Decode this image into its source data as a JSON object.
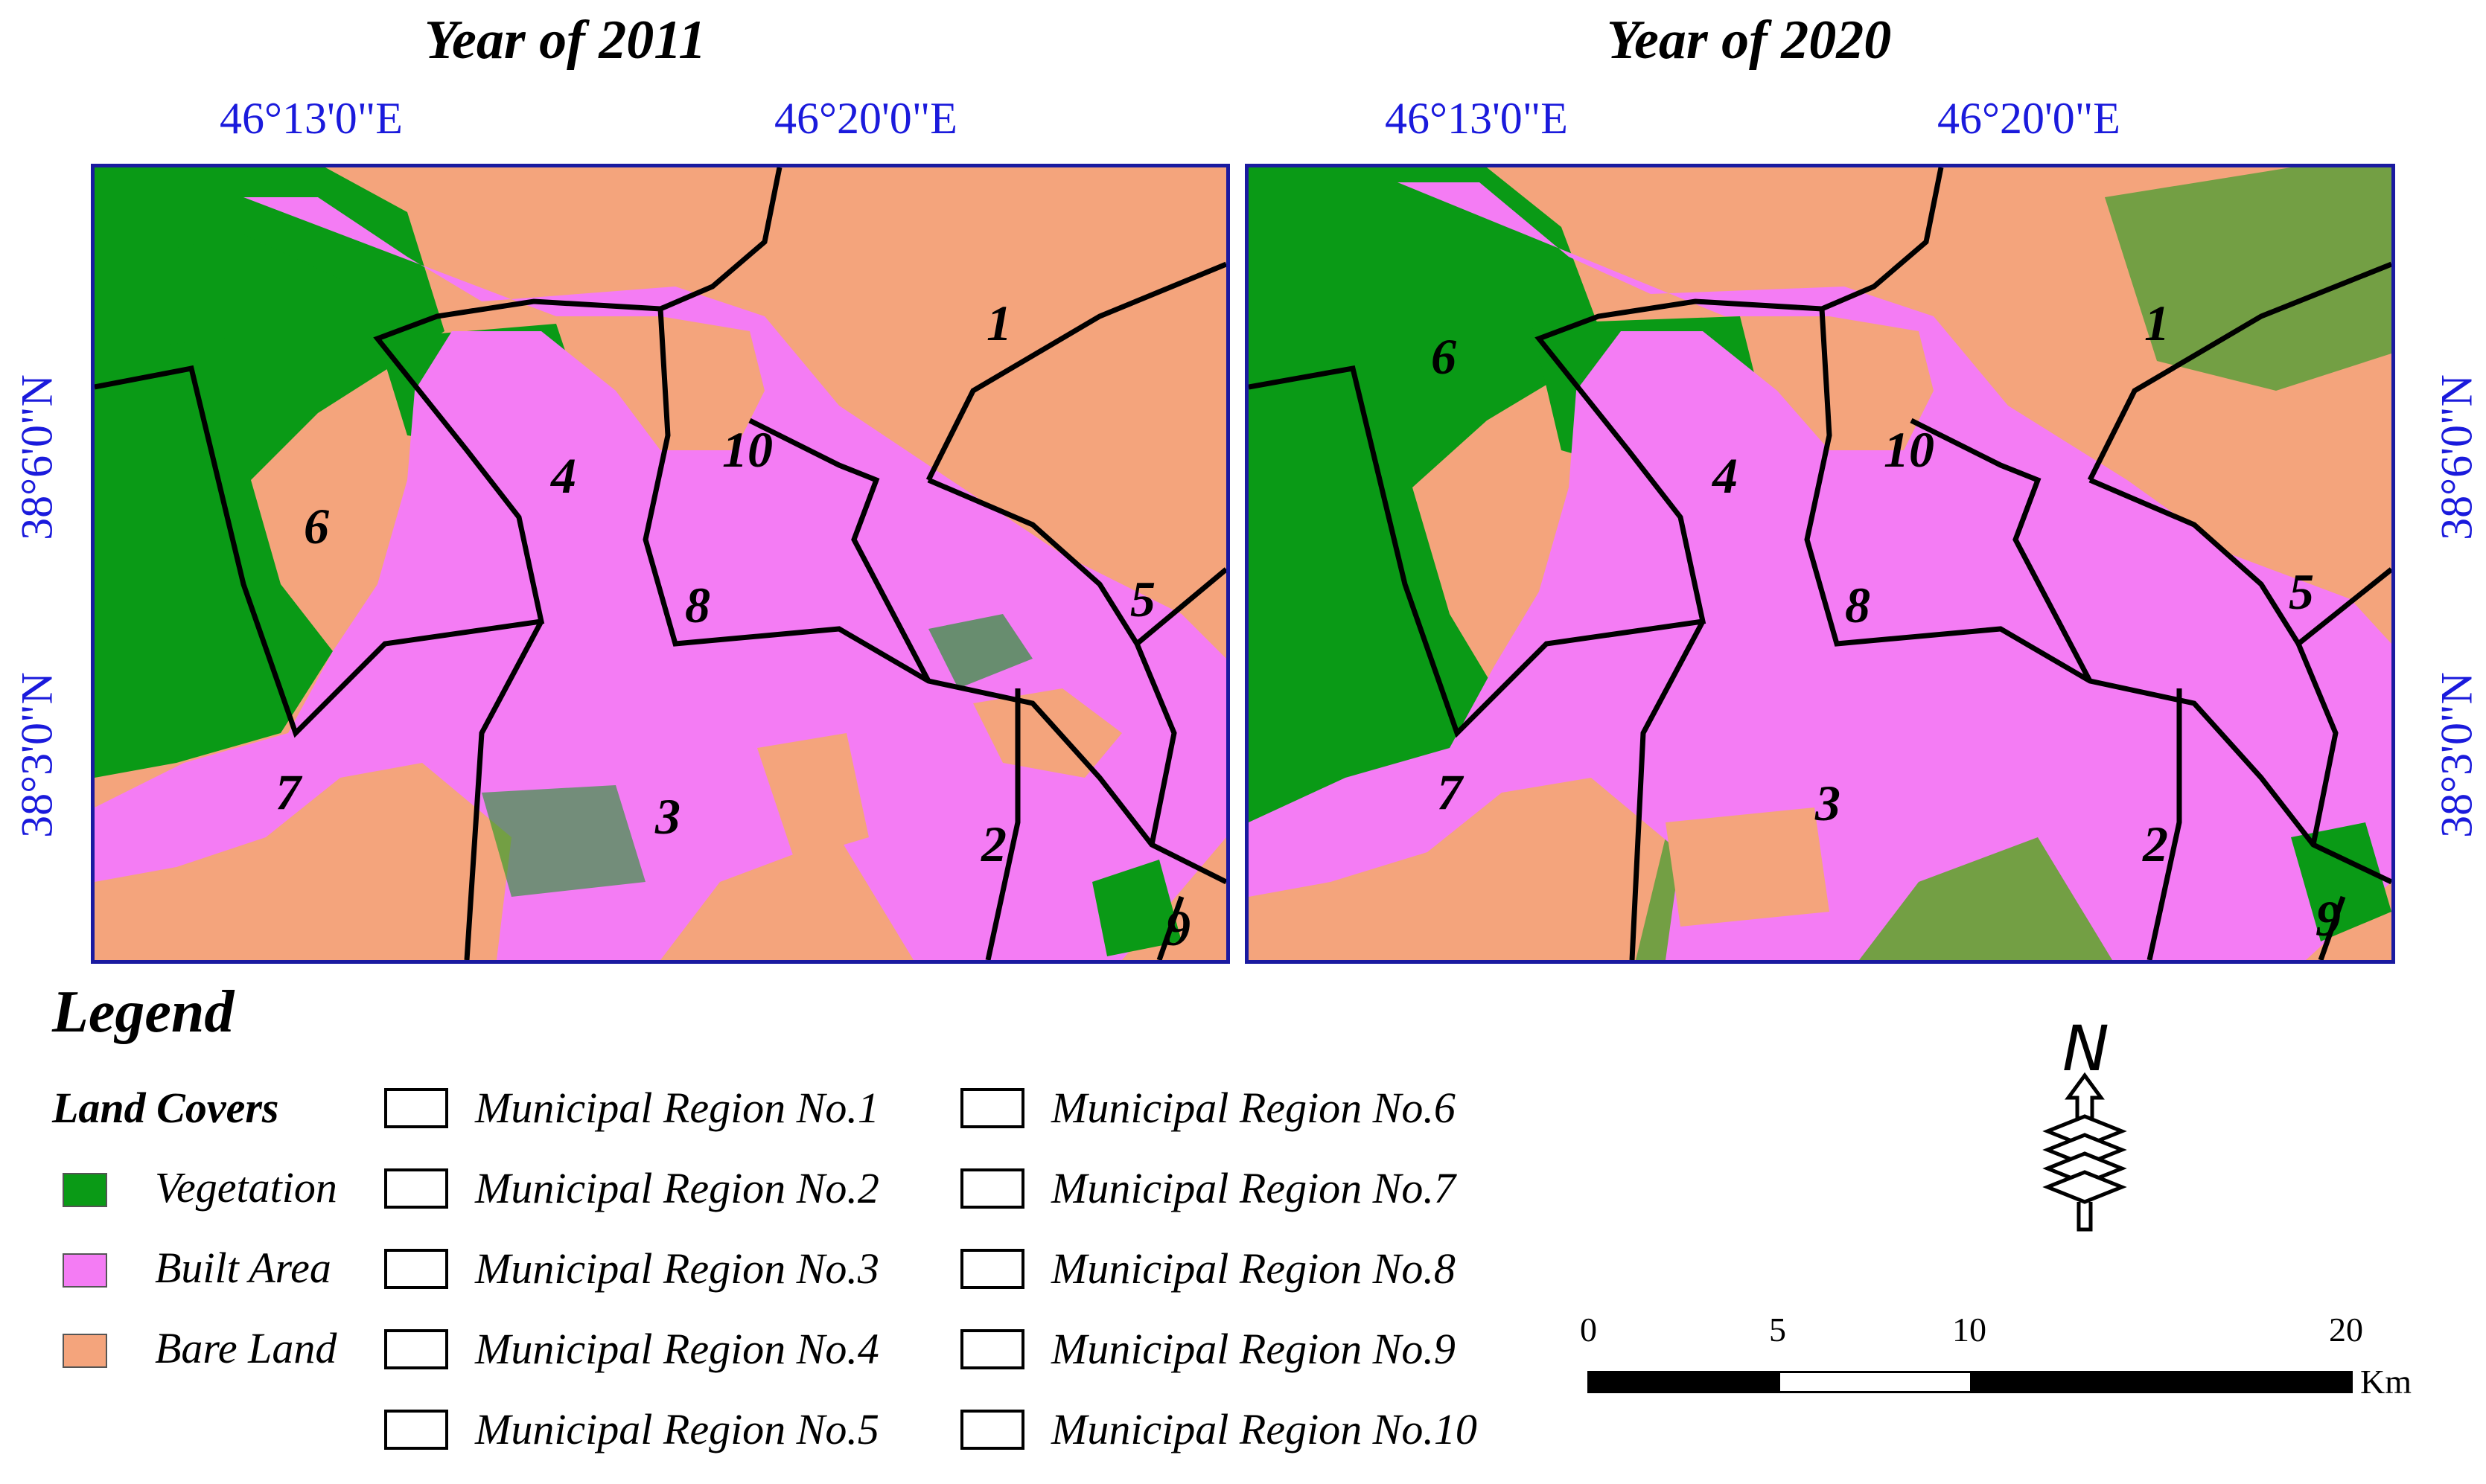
{
  "panels": [
    {
      "title": "Year of 2011",
      "lon_ticks": [
        "46°13'0\"E",
        "46°20'0\"E"
      ]
    },
    {
      "title": "Year of 2020",
      "lon_ticks": [
        "46°13'0\"E",
        "46°20'0\"E"
      ]
    }
  ],
  "lat_ticks": [
    "38°6'0\"N",
    "38°3'0\"N"
  ],
  "region_labels": [
    "1",
    "2",
    "3",
    "4",
    "5",
    "6",
    "7",
    "8",
    "9",
    "10"
  ],
  "legend": {
    "title": "Legend",
    "land_covers_heading": "Land Covers",
    "land_covers": [
      {
        "label": "Vegetation",
        "color": "#0a9a16"
      },
      {
        "label": "Built Area",
        "color": "#f47cf4"
      },
      {
        "label": "Bare Land",
        "color": "#f4a47c"
      }
    ],
    "regions": [
      "Municipal Region No.1",
      "Municipal Region No.2",
      "Municipal Region No.3",
      "Municipal Region No.4",
      "Municipal Region No.5",
      "Municipal Region No.6",
      "Municipal Region No.7",
      "Municipal Region No.8",
      "Municipal Region No.9",
      "Municipal Region No.10"
    ]
  },
  "north_arrow": "N",
  "scale_bar": {
    "ticks": [
      "0",
      "5",
      "10",
      "20"
    ],
    "unit": "Km"
  }
}
